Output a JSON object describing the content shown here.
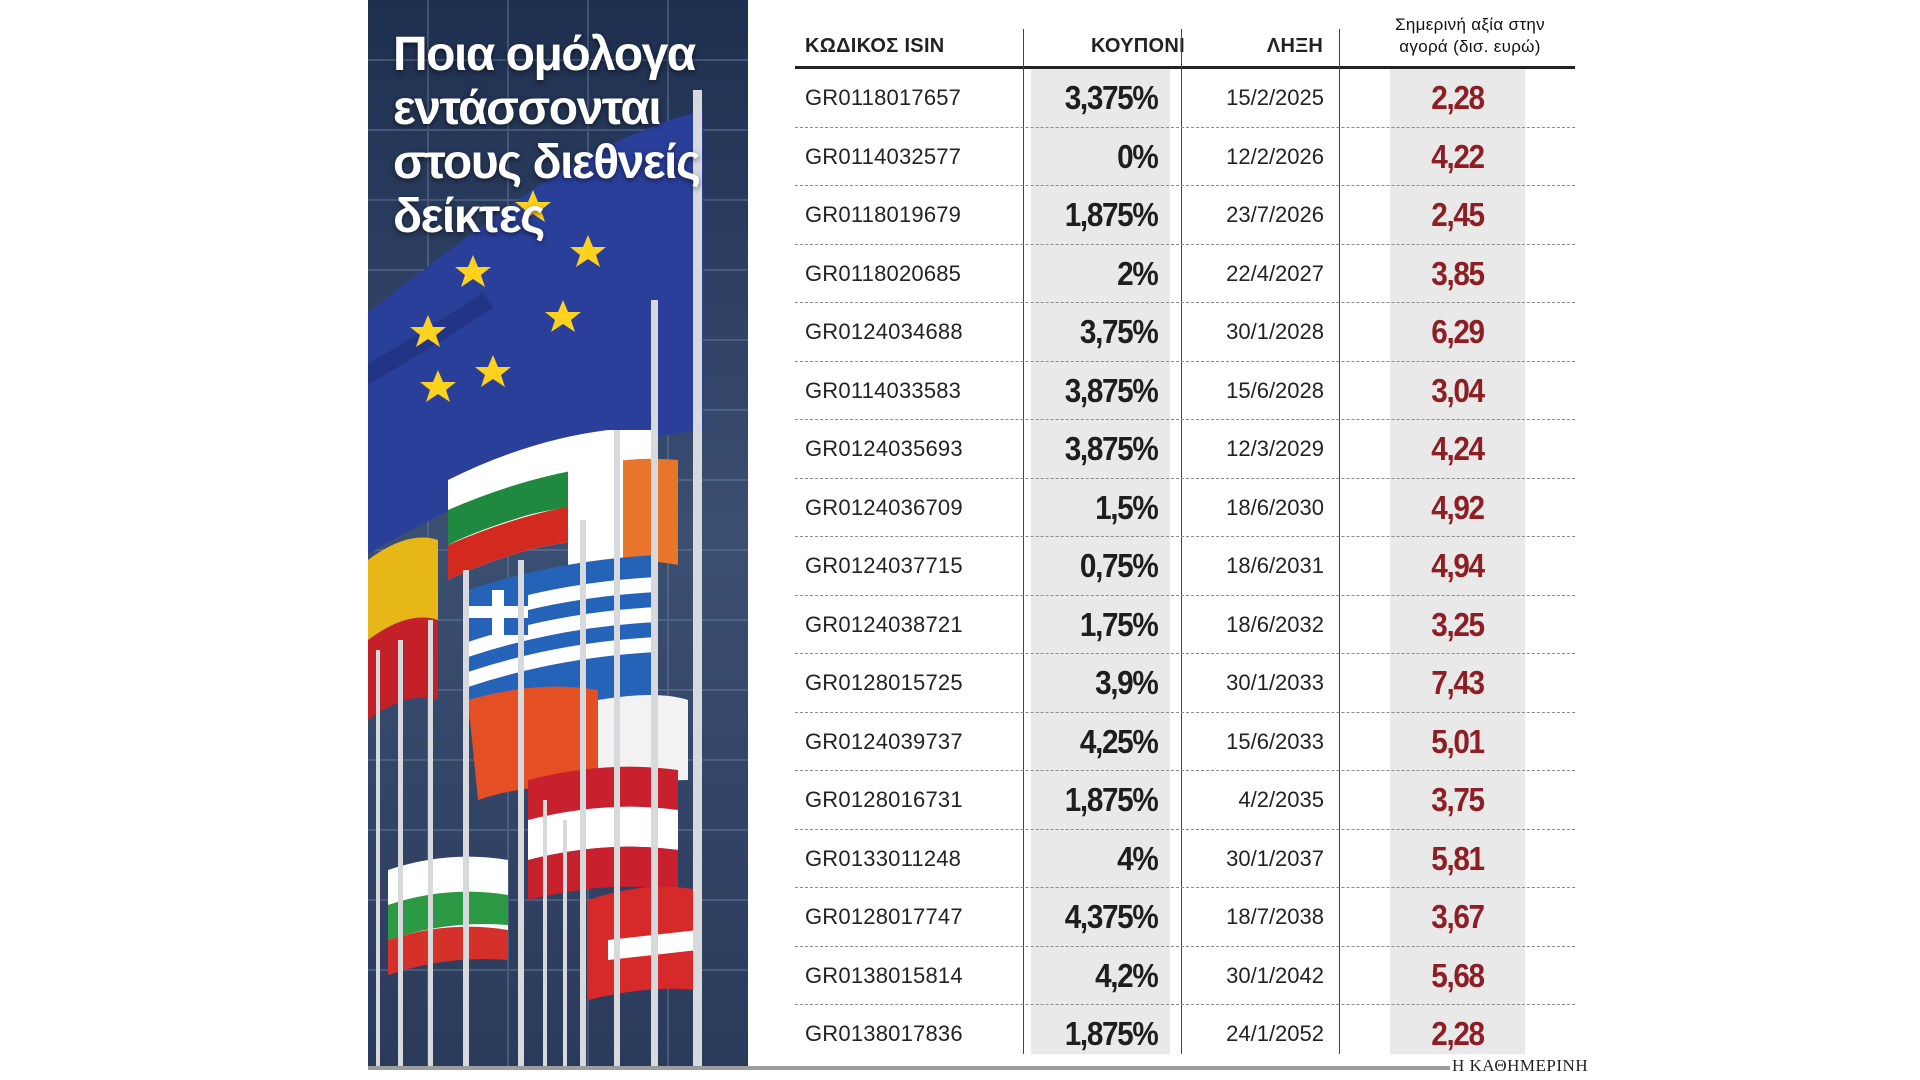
{
  "headline": "Ποια ομόλογα εντάσσονται στους διεθνείς δείκτες",
  "table": {
    "headers": {
      "isin": "ΚΩΔΙΚΟΣ ISIN",
      "coupon": "ΚΟΥΠΟΝΙ",
      "maturity": "ΛΗΞΗ",
      "value_line1": "Σημερινή αξία στην",
      "value_line2": "αγορά (δισ. ευρώ)"
    },
    "rows": [
      {
        "isin": "GR0118017657",
        "coupon": "3,375%",
        "maturity": "15/2/2025",
        "value": "2,28"
      },
      {
        "isin": "GR0114032577",
        "coupon": "0%",
        "maturity": "12/2/2026",
        "value": "4,22"
      },
      {
        "isin": "GR0118019679",
        "coupon": "1,875%",
        "maturity": "23/7/2026",
        "value": "2,45"
      },
      {
        "isin": "GR0118020685",
        "coupon": "2%",
        "maturity": "22/4/2027",
        "value": "3,85"
      },
      {
        "isin": "GR0124034688",
        "coupon": "3,75%",
        "maturity": "30/1/2028",
        "value": "6,29"
      },
      {
        "isin": "GR0114033583",
        "coupon": "3,875%",
        "maturity": "15/6/2028",
        "value": "3,04"
      },
      {
        "isin": "GR0124035693",
        "coupon": "3,875%",
        "maturity": "12/3/2029",
        "value": "4,24"
      },
      {
        "isin": "GR0124036709",
        "coupon": "1,5%",
        "maturity": "18/6/2030",
        "value": "4,92"
      },
      {
        "isin": "GR0124037715",
        "coupon": "0,75%",
        "maturity": "18/6/2031",
        "value": "4,94"
      },
      {
        "isin": "GR0124038721",
        "coupon": "1,75%",
        "maturity": "18/6/2032",
        "value": "3,25"
      },
      {
        "isin": "GR0128015725",
        "coupon": "3,9%",
        "maturity": "30/1/2033",
        "value": "7,43"
      },
      {
        "isin": "GR0124039737",
        "coupon": "4,25%",
        "maturity": "15/6/2033",
        "value": "5,01"
      },
      {
        "isin": "GR0128016731",
        "coupon": "1,875%",
        "maturity": "4/2/2035",
        "value": "3,75"
      },
      {
        "isin": "GR0133011248",
        "coupon": "4%",
        "maturity": "30/1/2037",
        "value": "5,81"
      },
      {
        "isin": "GR0128017747",
        "coupon": "4,375%",
        "maturity": "18/7/2038",
        "value": "3,67"
      },
      {
        "isin": "GR0138015814",
        "coupon": "4,2%",
        "maturity": "30/1/2042",
        "value": "5,68"
      },
      {
        "isin": "GR0138017836",
        "coupon": "1,875%",
        "maturity": "24/1/2052",
        "value": "2,28"
      }
    ]
  },
  "source": "Η ΚΑΘΗΜΕΡΙΝΗ",
  "colors": {
    "value_text": "#8d1f24",
    "shade": "#e9e9e9",
    "eu_blue": "#2a3f9a",
    "eu_star": "#ffd21e"
  },
  "icons": [
    "eu-flag-icon",
    "greek-flag-icon"
  ]
}
